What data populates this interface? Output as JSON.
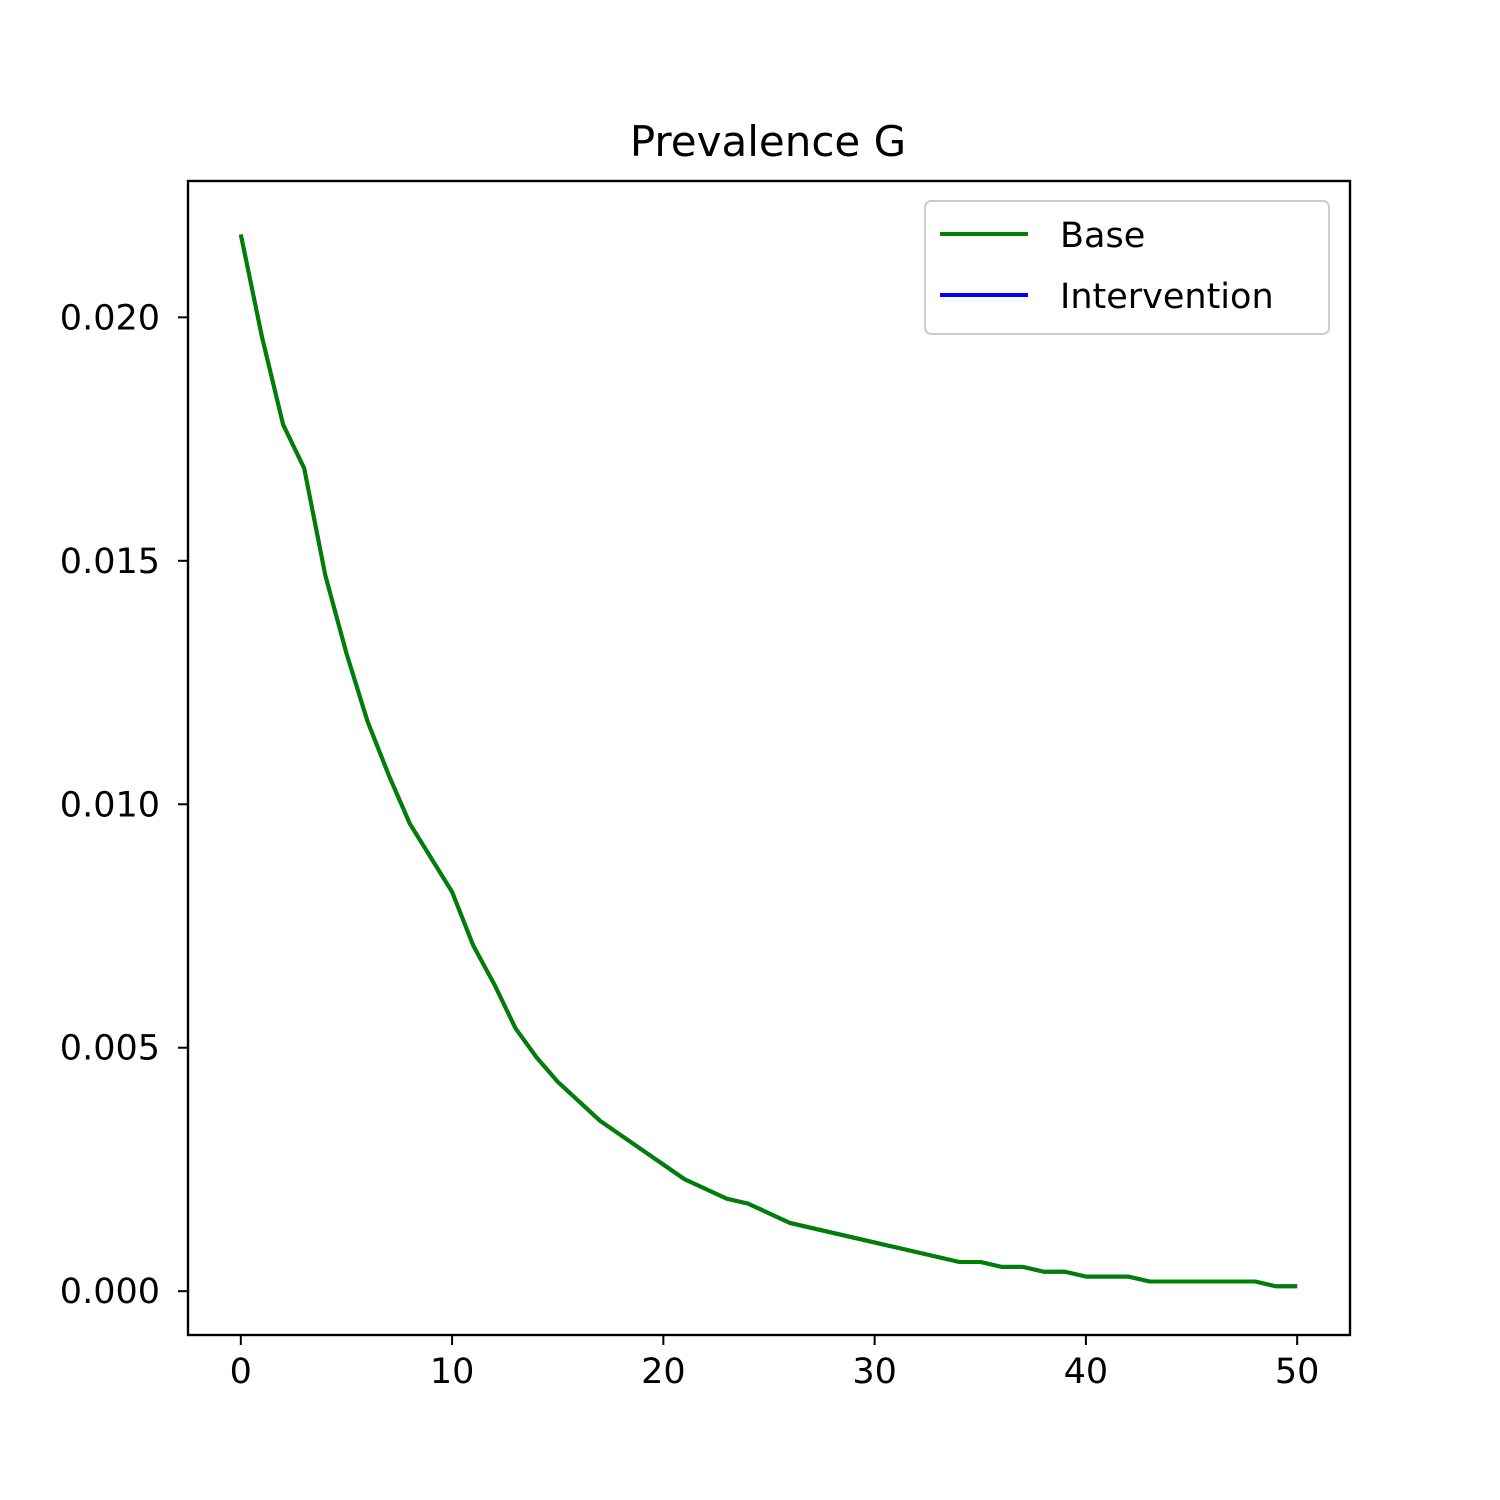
{
  "chart_data": {
    "type": "line",
    "title": "Prevalence G",
    "xlabel": "",
    "ylabel": "",
    "xlim": [
      -2.5,
      52.5
    ],
    "ylim": [
      -0.0009,
      0.0228
    ],
    "xticks": [
      0,
      10,
      20,
      30,
      40,
      50
    ],
    "xtick_labels": [
      "0",
      "10",
      "20",
      "30",
      "40",
      "50"
    ],
    "yticks": [
      0.0,
      0.005,
      0.01,
      0.015,
      0.02
    ],
    "ytick_labels": [
      "0.000",
      "0.005",
      "0.010",
      "0.015",
      "0.020"
    ],
    "grid": false,
    "legend_position": "upper right",
    "x": [
      0,
      1,
      2,
      3,
      4,
      5,
      6,
      7,
      8,
      9,
      10,
      11,
      12,
      13,
      14,
      15,
      16,
      17,
      18,
      19,
      20,
      21,
      22,
      23,
      24,
      25,
      26,
      27,
      28,
      29,
      30,
      31,
      32,
      33,
      34,
      35,
      36,
      37,
      38,
      39,
      40,
      41,
      42,
      43,
      44,
      45,
      46,
      47,
      48,
      49,
      50
    ],
    "series": [
      {
        "name": "Base",
        "color": "#008000",
        "values": [
          0.0217,
          0.0196,
          0.0178,
          0.0169,
          0.0147,
          0.0131,
          0.0117,
          0.0106,
          0.0096,
          0.0089,
          0.0082,
          0.0071,
          0.0063,
          0.0054,
          0.0048,
          0.0043,
          0.0039,
          0.0035,
          0.0032,
          0.0029,
          0.0026,
          0.0023,
          0.0021,
          0.0019,
          0.0018,
          0.0016,
          0.0014,
          0.0013,
          0.0012,
          0.0011,
          0.001,
          0.0009,
          0.0008,
          0.0007,
          0.0006,
          0.0006,
          0.0005,
          0.0005,
          0.0004,
          0.0004,
          0.0003,
          0.0003,
          0.0003,
          0.0002,
          0.0002,
          0.0002,
          0.0002,
          0.0002,
          0.0002,
          0.0001,
          0.0001
        ]
      },
      {
        "name": "Intervention",
        "color": "#0000ff",
        "values": [
          0.0217,
          0.0196,
          0.0178,
          0.0169,
          0.0147,
          0.0131,
          0.0117,
          0.0106,
          0.0096,
          0.0089,
          0.0082,
          0.0071,
          0.0063,
          0.0054,
          0.0048,
          0.0043,
          0.0039,
          0.0035,
          0.0032,
          0.0029,
          0.0026,
          0.0023,
          0.0021,
          0.0019,
          0.0018,
          0.0016,
          0.0014,
          0.0013,
          0.0012,
          0.0011,
          0.001,
          0.0009,
          0.0008,
          0.0007,
          0.0006,
          0.0006,
          0.0005,
          0.0005,
          0.0004,
          0.0004,
          0.0003,
          0.0003,
          0.0003,
          0.0002,
          0.0002,
          0.0002,
          0.0002,
          0.0002,
          0.0002,
          0.0001,
          0.0001
        ]
      }
    ]
  }
}
